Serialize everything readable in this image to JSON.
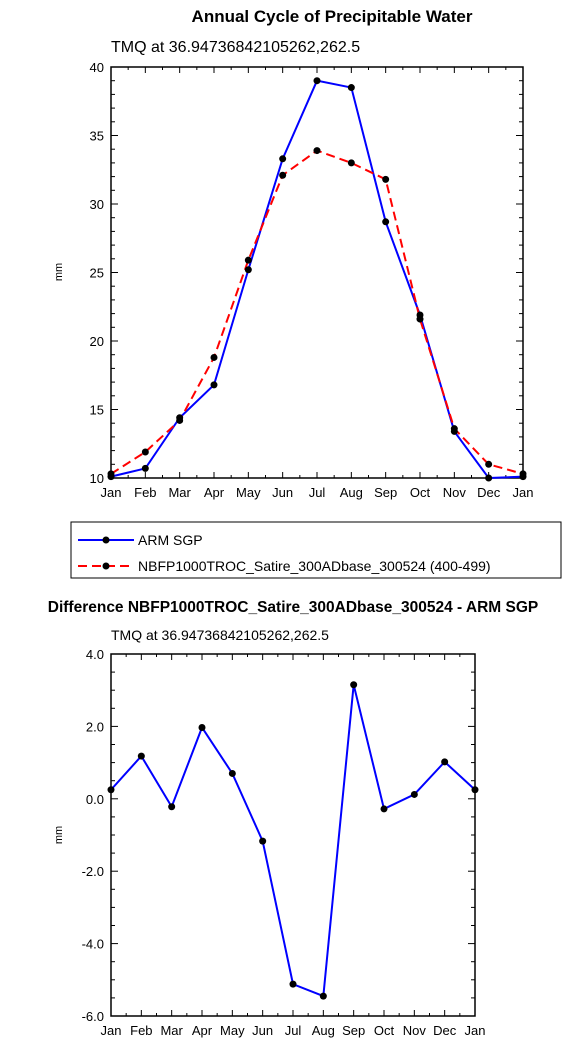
{
  "chart_data": [
    {
      "type": "line",
      "title": "Annual Cycle of Precipitable Water",
      "subtitle": "TMQ at 36.94736842105262,262.5",
      "ylabel": "mm",
      "ylim": [
        10,
        40
      ],
      "yticks": [
        "10",
        "15",
        "20",
        "25",
        "30",
        "35",
        "40"
      ],
      "categories": [
        "Jan",
        "Feb",
        "Mar",
        "Apr",
        "May",
        "Jun",
        "Jul",
        "Aug",
        "Sep",
        "Oct",
        "Nov",
        "Dec",
        "Jan"
      ],
      "legend_position": "below",
      "series": [
        {
          "name": "ARM SGP",
          "color": "#0000ff",
          "dash": "solid",
          "values": [
            10.1,
            10.7,
            14.4,
            16.8,
            25.2,
            33.3,
            39.0,
            38.5,
            28.7,
            21.9,
            13.4,
            10.0,
            10.1
          ]
        },
        {
          "name": "NBFP1000TROC_Satire_300ADbase_300524 (400-499)",
          "color": "#ff0000",
          "dash": "dashed",
          "values": [
            10.3,
            11.9,
            14.2,
            18.8,
            25.9,
            32.1,
            33.9,
            33.0,
            31.8,
            21.6,
            13.6,
            11.0,
            10.3
          ]
        }
      ]
    },
    {
      "type": "line",
      "title": "Difference NBFP1000TROC_Satire_300ADbase_300524 - ARM SGP",
      "subtitle": "TMQ at 36.94736842105262,262.5",
      "ylabel": "mm",
      "ylim": [
        -6,
        4
      ],
      "yticks": [
        "-6.0",
        "-4.0",
        "-2.0",
        "0.0",
        "2.0",
        "4.0"
      ],
      "categories": [
        "Jan",
        "Feb",
        "Mar",
        "Apr",
        "May",
        "Jun",
        "Jul",
        "Aug",
        "Sep",
        "Oct",
        "Nov",
        "Dec",
        "Jan"
      ],
      "series": [
        {
          "name": "",
          "color": "#0000ff",
          "dash": "solid",
          "values": [
            0.25,
            1.18,
            -0.22,
            1.97,
            0.7,
            -1.17,
            -5.12,
            -5.45,
            3.15,
            -0.28,
            0.12,
            1.02,
            0.25
          ]
        }
      ]
    }
  ]
}
